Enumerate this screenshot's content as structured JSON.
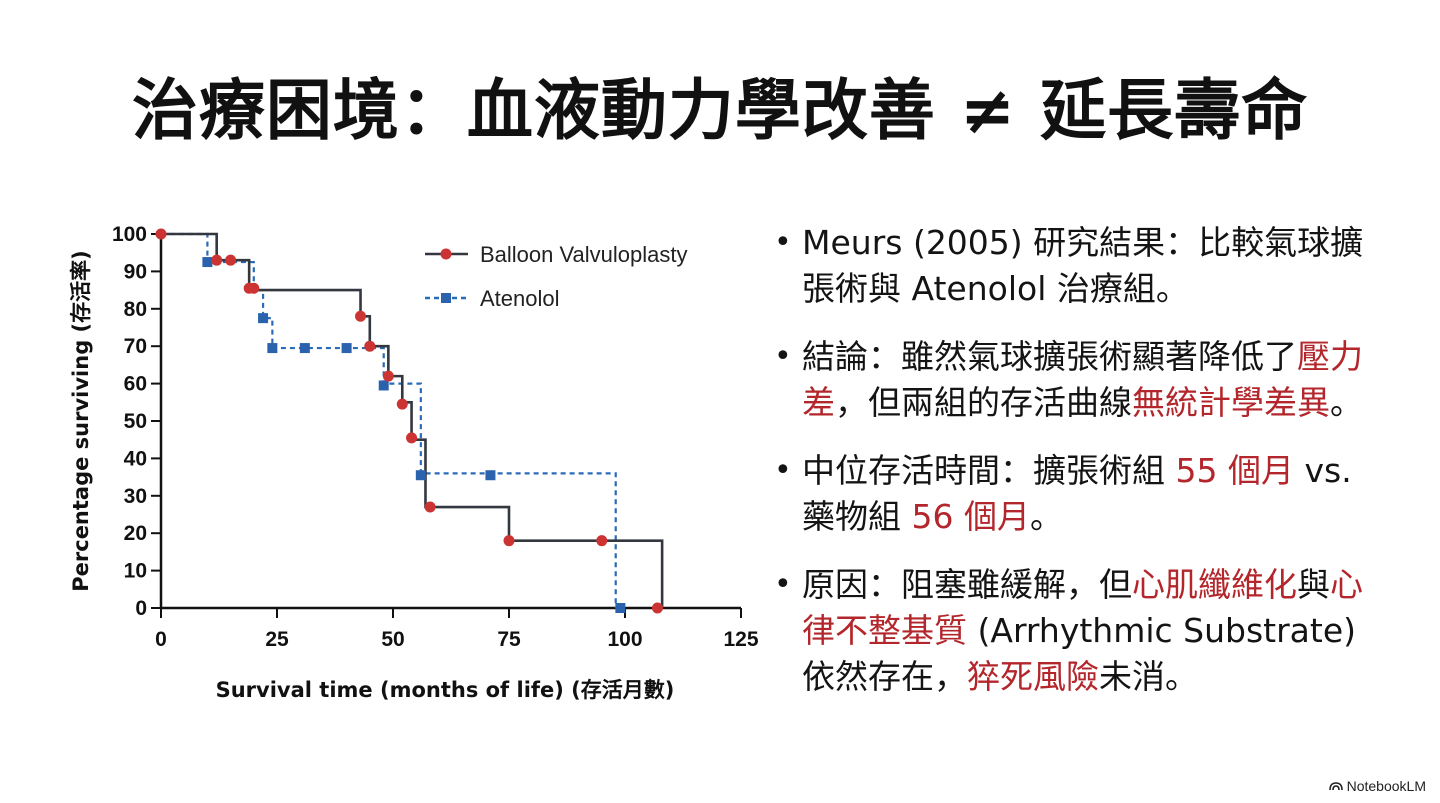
{
  "title": "治療困境：血液動力學改善 ≠ 延長壽命",
  "chart_data": {
    "type": "line",
    "step": true,
    "xlabel": "Survival time (months of life) (存活月數)",
    "ylabel": "Percentage surviving (存活率)",
    "xlim": [
      0,
      125
    ],
    "ylim": [
      0,
      100
    ],
    "xticks": [
      0,
      25,
      50,
      75,
      100,
      125
    ],
    "yticks": [
      0,
      10,
      20,
      30,
      40,
      50,
      60,
      70,
      80,
      90,
      100
    ],
    "grid": false,
    "legend_position": "top-right",
    "series": [
      {
        "name": "Balloon Valvuloplasty",
        "color": "#33373f",
        "marker_color": "#cc3333",
        "marker": "circle",
        "line_style": "solid",
        "steps": [
          [
            0,
            100
          ],
          [
            12,
            93
          ],
          [
            19,
            85
          ],
          [
            43,
            78
          ],
          [
            45,
            70
          ],
          [
            49,
            62
          ],
          [
            52,
            55
          ],
          [
            54,
            45
          ],
          [
            57,
            27
          ],
          [
            75,
            18
          ],
          [
            108,
            0
          ]
        ],
        "markers": [
          [
            0,
            100
          ],
          [
            12,
            93
          ],
          [
            15,
            93
          ],
          [
            19,
            85.5
          ],
          [
            20,
            85.5
          ],
          [
            43,
            78
          ],
          [
            45,
            70
          ],
          [
            49,
            62
          ],
          [
            52,
            54.5
          ],
          [
            54,
            45.5
          ],
          [
            58,
            27
          ],
          [
            75,
            18
          ],
          [
            95,
            18
          ],
          [
            107,
            0
          ]
        ]
      },
      {
        "name": "Atenolol",
        "color": "#2a6bb8",
        "marker_color": "#2a62ad",
        "marker": "square",
        "line_style": "dashed",
        "steps": [
          [
            0,
            100
          ],
          [
            10,
            92.5
          ],
          [
            20,
            85
          ],
          [
            22,
            77.5
          ],
          [
            24,
            69.5
          ],
          [
            48,
            60
          ],
          [
            56,
            36
          ],
          [
            98,
            0
          ]
        ],
        "markers": [
          [
            10,
            92.5
          ],
          [
            22,
            77.5
          ],
          [
            24,
            69.5
          ],
          [
            31,
            69.5
          ],
          [
            40,
            69.5
          ],
          [
            48,
            59.5
          ],
          [
            56,
            35.5
          ],
          [
            71,
            35.5
          ],
          [
            99,
            0
          ]
        ]
      }
    ]
  },
  "bullets": [
    [
      {
        "text": "Meurs (2005) 研究結果：比較氣球擴張術與 Atenolol 治療組。",
        "hl": false
      }
    ],
    [
      {
        "text": "結論：雖然氣球擴張術顯著降低了",
        "hl": false
      },
      {
        "text": "壓力差",
        "hl": true
      },
      {
        "text": "，但兩組的存活曲線",
        "hl": false
      },
      {
        "text": "無統計學差異",
        "hl": true
      },
      {
        "text": "。",
        "hl": false
      }
    ],
    [
      {
        "text": "中位存活時間：擴張術組 ",
        "hl": false
      },
      {
        "text": "55 個月",
        "hl": true
      },
      {
        "text": " vs. 藥物組 ",
        "hl": false
      },
      {
        "text": "56 個月",
        "hl": true
      },
      {
        "text": "。",
        "hl": false
      }
    ],
    [
      {
        "text": "原因：阻塞雖緩解，但",
        "hl": false
      },
      {
        "text": "心肌纖維化",
        "hl": true
      },
      {
        "text": "與",
        "hl": false
      },
      {
        "text": "心律不整基質",
        "hl": true
      },
      {
        "text": " (Arrhythmic Substrate) 依然存在，",
        "hl": false
      },
      {
        "text": "猝死風險",
        "hl": true
      },
      {
        "text": "未消。",
        "hl": false
      }
    ]
  ],
  "watermark": {
    "text": "NotebookLM",
    "icon": "notebooklm-logo-icon"
  }
}
